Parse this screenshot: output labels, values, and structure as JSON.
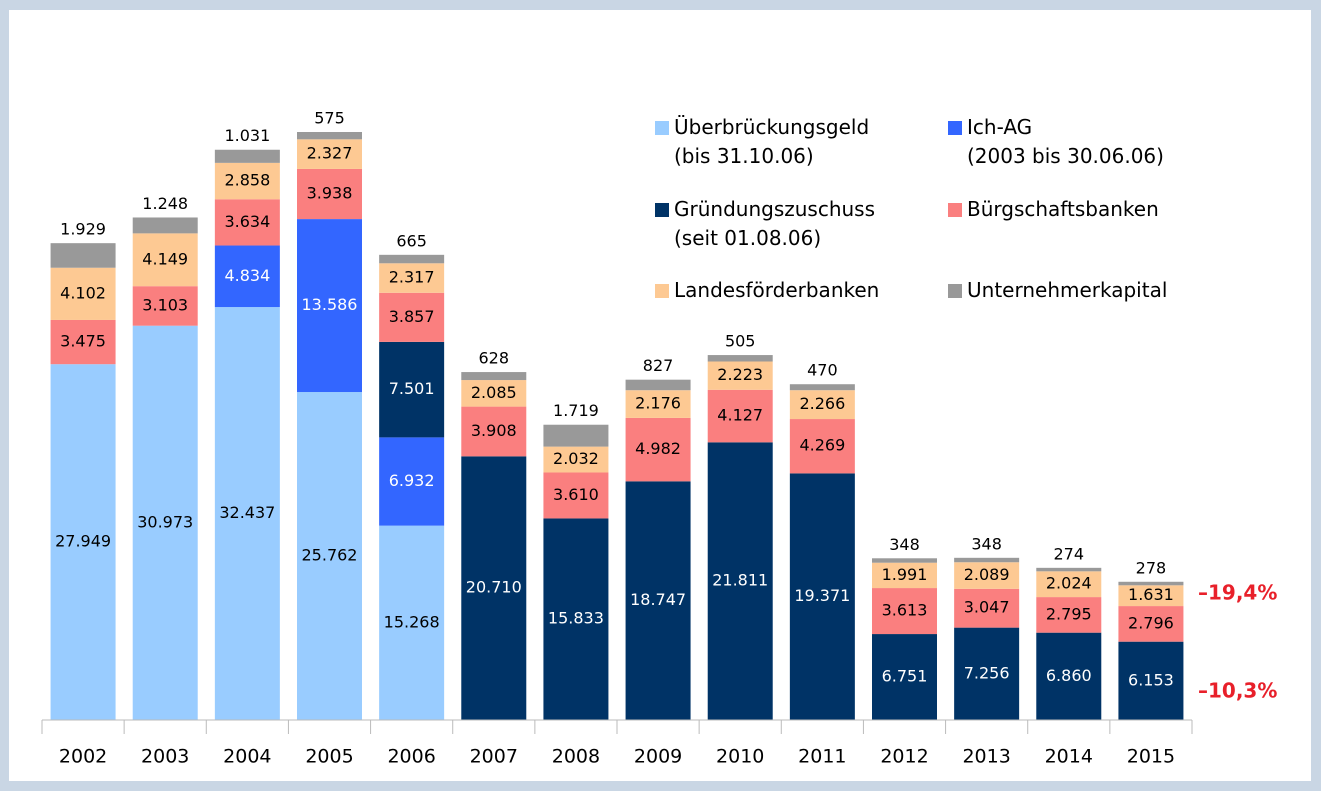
{
  "chart_data": {
    "type": "stacked_bar",
    "categories": [
      "2002",
      "2003",
      "2004",
      "2005",
      "2006",
      "2007",
      "2008",
      "2009",
      "2010",
      "2011",
      "2012",
      "2013",
      "2014",
      "2015"
    ],
    "series": [
      {
        "name": "Überbrückungsgeld\n(bis 31.10.06)",
        "color": "#99ccff",
        "values": [
          27949,
          30973,
          32437,
          25762,
          15268,
          null,
          null,
          null,
          null,
          null,
          null,
          null,
          null,
          null
        ],
        "value_labels": [
          "27.949",
          "30.973",
          "32.437",
          "25.762",
          "15.268",
          null,
          null,
          null,
          null,
          null,
          null,
          null,
          null,
          null
        ]
      },
      {
        "name": "Ich-AG\n(2003 bis 30.06.06)",
        "color": "#3366ff",
        "values": [
          null,
          null,
          4834,
          13586,
          6932,
          null,
          null,
          null,
          null,
          null,
          null,
          null,
          null,
          null
        ],
        "value_labels": [
          null,
          null,
          "4.834",
          "13.586",
          "6.932",
          null,
          null,
          null,
          null,
          null,
          null,
          null,
          null,
          null
        ]
      },
      {
        "name": "Gründungszuschuss\n(seit 01.08.06)",
        "color": "#003366",
        "values": [
          null,
          null,
          null,
          null,
          7501,
          20710,
          15833,
          18747,
          21811,
          19371,
          6751,
          7256,
          6860,
          6153
        ],
        "value_labels": [
          null,
          null,
          null,
          null,
          "7.501",
          "20.710",
          "15.833",
          "18.747",
          "21.811",
          "19.371",
          "6.751",
          "7.256",
          "6.860",
          "6.153"
        ]
      },
      {
        "name": "Bürgschaftsbanken",
        "color": "#fa7f7f",
        "values": [
          3475,
          3103,
          3634,
          3938,
          3857,
          3908,
          3610,
          4982,
          4127,
          4269,
          3613,
          3047,
          2795,
          2796
        ],
        "value_labels": [
          "3.475",
          "3.103",
          "3.634",
          "3.938",
          "3.857",
          "3.908",
          "3.610",
          "4.982",
          "4.127",
          "4.269",
          "3.613",
          "3.047",
          "2.795",
          "2.796"
        ]
      },
      {
        "name": "Landesförderbanken",
        "color": "#fdc993",
        "values": [
          4102,
          4149,
          2858,
          2327,
          2317,
          2085,
          2032,
          2176,
          2223,
          2266,
          1991,
          2089,
          2024,
          1631
        ],
        "value_labels": [
          "4.102",
          "4.149",
          "2.858",
          "2.327",
          "2.317",
          "2.085",
          "2.032",
          "2.176",
          "2.223",
          "2.266",
          "1.991",
          "2.089",
          "2.024",
          "1.631"
        ]
      },
      {
        "name": "Unternehmerkapital",
        "color": "#999999",
        "values": [
          1929,
          1248,
          1031,
          575,
          665,
          628,
          1719,
          827,
          505,
          470,
          348,
          348,
          274,
          278
        ],
        "value_labels": [
          "1.929",
          "1.248",
          "1.031",
          "575",
          "665",
          "628",
          "1.719",
          "827",
          "505",
          "470",
          "348",
          "348",
          "274",
          "278"
        ]
      }
    ],
    "annotations": [
      "–19,4%",
      "–10,3%"
    ]
  }
}
